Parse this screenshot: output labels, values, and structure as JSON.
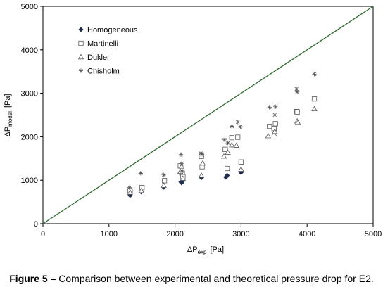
{
  "chart_data": {
    "type": "scatter",
    "title": "",
    "xlabel": {
      "main": "ΔP",
      "sub": "exp",
      "unit": "[Pa]"
    },
    "ylabel": {
      "main": "ΔP",
      "sub": "model",
      "unit": "[Pa]"
    },
    "xlim": [
      0,
      5000
    ],
    "ylim": [
      0,
      5000
    ],
    "xticks": [
      0,
      1000,
      2000,
      3000,
      4000,
      5000
    ],
    "yticks": [
      0,
      1000,
      2000,
      3000,
      4000,
      5000
    ],
    "grid": false,
    "legend_position": "top-left",
    "reference_line": {
      "x": [
        0,
        5000
      ],
      "y": [
        0,
        5000
      ],
      "color": "#2e6b2e"
    },
    "series": [
      {
        "name": "Homogeneous",
        "marker": "diamond",
        "color": "#1f2d4d",
        "points": [
          [
            1320,
            650
          ],
          [
            1490,
            730
          ],
          [
            1830,
            840
          ],
          [
            2080,
            1160
          ],
          [
            2090,
            960
          ],
          [
            2100,
            940
          ],
          [
            2110,
            970
          ],
          [
            2120,
            1000
          ],
          [
            2400,
            1060
          ],
          [
            2770,
            1070
          ],
          [
            2790,
            1110
          ],
          [
            3000,
            1180
          ]
        ]
      },
      {
        "name": "Martinelli",
        "marker": "square",
        "color": "#5a5a5a",
        "points": [
          [
            1320,
            760
          ],
          [
            1500,
            830
          ],
          [
            1840,
            990
          ],
          [
            2080,
            1330
          ],
          [
            2110,
            1160
          ],
          [
            2120,
            1080
          ],
          [
            2400,
            1550
          ],
          [
            2410,
            1310
          ],
          [
            2760,
            1710
          ],
          [
            2790,
            1270
          ],
          [
            2860,
            1980
          ],
          [
            2950,
            1990
          ],
          [
            3000,
            1420
          ],
          [
            3430,
            2240
          ],
          [
            3500,
            2190
          ],
          [
            3520,
            2300
          ],
          [
            3840,
            2580
          ],
          [
            3850,
            2570
          ],
          [
            4110,
            2870
          ]
        ]
      },
      {
        "name": "Dukler",
        "marker": "triangle",
        "color": "#5a5a5a",
        "points": [
          [
            1320,
            720
          ],
          [
            1490,
            760
          ],
          [
            1830,
            880
          ],
          [
            2080,
            1200
          ],
          [
            2100,
            1320
          ],
          [
            2120,
            1040
          ],
          [
            2400,
            1110
          ],
          [
            2420,
            1390
          ],
          [
            2740,
            1550
          ],
          [
            2800,
            1640
          ],
          [
            2860,
            1810
          ],
          [
            2930,
            1800
          ],
          [
            3000,
            1250
          ],
          [
            3410,
            2020
          ],
          [
            3500,
            2060
          ],
          [
            3510,
            2120
          ],
          [
            3850,
            2360
          ],
          [
            3860,
            2330
          ],
          [
            4110,
            2640
          ]
        ]
      },
      {
        "name": "Chisholm",
        "marker": "star",
        "color": "#5a5a5a",
        "points": [
          [
            1310,
            830
          ],
          [
            1480,
            1160
          ],
          [
            1830,
            1120
          ],
          [
            2090,
            1590
          ],
          [
            2100,
            1380
          ],
          [
            2110,
            1210
          ],
          [
            2390,
            1620
          ],
          [
            2410,
            1600
          ],
          [
            2750,
            1930
          ],
          [
            2800,
            1860
          ],
          [
            2860,
            2240
          ],
          [
            2950,
            2340
          ],
          [
            2990,
            2230
          ],
          [
            3430,
            2680
          ],
          [
            3510,
            2500
          ],
          [
            3520,
            2690
          ],
          [
            3840,
            3100
          ],
          [
            3850,
            3030
          ],
          [
            4110,
            3440
          ]
        ]
      }
    ]
  },
  "caption": {
    "label": "Figure 5 –",
    "text": "Comparison between experimental and theoretical pressure drop for E2."
  }
}
